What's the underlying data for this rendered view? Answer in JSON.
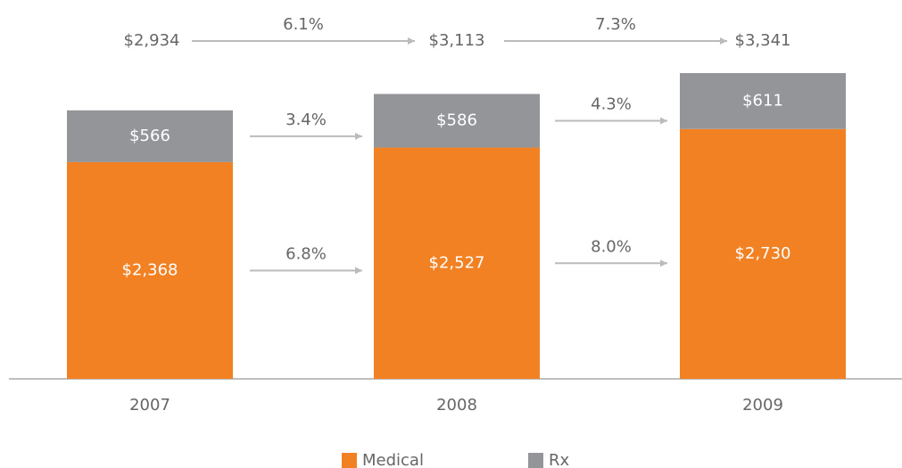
{
  "chart_data": {
    "type": "stacked_bar",
    "categories": [
      "2007",
      "2008",
      "2009"
    ],
    "series": [
      {
        "name": "Medical",
        "color": "#f28123",
        "values": [
          2368,
          2527,
          2730
        ],
        "value_labels": [
          "$2,368",
          "$2,527",
          "$2,730"
        ],
        "growth_labels": [
          "6.8%",
          "8.0%"
        ]
      },
      {
        "name": "Rx",
        "color": "#939598",
        "values": [
          566,
          586,
          611
        ],
        "value_labels": [
          "$566",
          "$586",
          "$611"
        ],
        "growth_labels": [
          "3.4%",
          "4.3%"
        ]
      }
    ],
    "total_labels": [
      "$2,934",
      "$3,113",
      "$3,341"
    ],
    "total_growth_labels": [
      "6.1%",
      "7.3%"
    ]
  }
}
